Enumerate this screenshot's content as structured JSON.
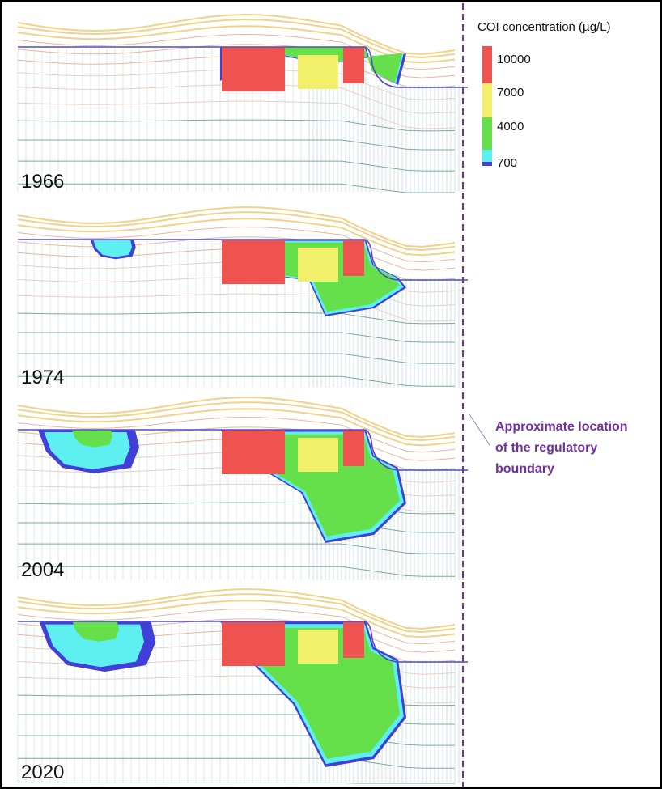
{
  "legend": {
    "title": "COI concentration (µg/L)",
    "labels": [
      "10000",
      "7000",
      "4000",
      "700"
    ]
  },
  "panels": [
    {
      "year": "1966"
    },
    {
      "year": "1974"
    },
    {
      "year": "2004"
    },
    {
      "year": "2020"
    }
  ],
  "annotation": {
    "lines": [
      "Approximate location",
      "of the regulatory",
      "boundary"
    ]
  }
}
